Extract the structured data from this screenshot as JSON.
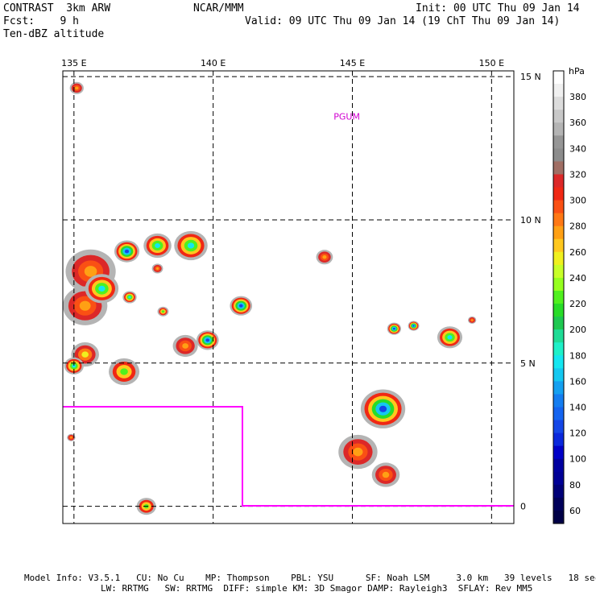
{
  "header": {
    "model": "CONTRAST  3km ARW",
    "org": "NCAR/MMM",
    "init": "Init: 00 UTC Thu 09 Jan 14",
    "fcst": "Fcst:    9 h",
    "valid": "Valid: 09 UTC Thu 09 Jan 14 (19 ChT Thu 09 Jan 14)",
    "field": "Ten-dBZ altitude"
  },
  "axes": {
    "lon_labels": [
      "135 E",
      "140 E",
      "145 E",
      "150 E"
    ],
    "lat_labels": [
      "15 N",
      "10 N",
      "5 N",
      "0"
    ],
    "lon_values": [
      135,
      140,
      145,
      150
    ],
    "lat_values": [
      15,
      10,
      5,
      0
    ],
    "lon_range": [
      134.6,
      150.8
    ],
    "lat_range": [
      -0.6,
      15.2
    ]
  },
  "station": {
    "label": "PGUM",
    "lon": 144.8,
    "lat": 13.5
  },
  "colorbar": {
    "unit": "hPa",
    "levels": [
      {
        "label": "",
        "color": "#ffffff"
      },
      {
        "label": "380",
        "color": "#f0f0f0"
      },
      {
        "label": "",
        "color": "#dcdcdc"
      },
      {
        "label": "360",
        "color": "#c8c8c8"
      },
      {
        "label": "",
        "color": "#b4b4b4"
      },
      {
        "label": "340",
        "color": "#969696"
      },
      {
        "label": "",
        "color": "#8c8c8c"
      },
      {
        "label": "320",
        "color": "#a06e64"
      },
      {
        "label": "",
        "color": "#dc2828"
      },
      {
        "label": "300",
        "color": "#f02814"
      },
      {
        "label": "",
        "color": "#fa5014"
      },
      {
        "label": "280",
        "color": "#ff7814"
      },
      {
        "label": "",
        "color": "#ffa014"
      },
      {
        "label": "260",
        "color": "#ffc81e"
      },
      {
        "label": "",
        "color": "#f0f01e"
      },
      {
        "label": "240",
        "color": "#c8ff28"
      },
      {
        "label": "",
        "color": "#96ff1e"
      },
      {
        "label": "220",
        "color": "#50f01e"
      },
      {
        "label": "",
        "color": "#28dc28"
      },
      {
        "label": "200",
        "color": "#1ec850"
      },
      {
        "label": "",
        "color": "#1edc96"
      },
      {
        "label": "180",
        "color": "#1ef0c8"
      },
      {
        "label": "",
        "color": "#14e6f0"
      },
      {
        "label": "160",
        "color": "#14c8f0"
      },
      {
        "label": "",
        "color": "#14a0f0"
      },
      {
        "label": "140",
        "color": "#147df0"
      },
      {
        "label": "",
        "color": "#1464f0"
      },
      {
        "label": "120",
        "color": "#1446e6"
      },
      {
        "label": "",
        "color": "#0a28dc"
      },
      {
        "label": "100",
        "color": "#0000c8"
      },
      {
        "label": "",
        "color": "#0000a0"
      },
      {
        "label": "80",
        "color": "#000096"
      },
      {
        "label": "",
        "color": "#000078"
      },
      {
        "label": "60",
        "color": "#00005a"
      },
      {
        "label": "",
        "color": "#000046"
      }
    ]
  },
  "domain_box_color": "#ff00ff",
  "footer": {
    "line1": "Model Info: V3.5.1   CU: No Cu    MP: Thompson    PBL: YSU      SF: Noah LSM     3.0 km   39 levels   18 sec",
    "line2": "LW: RRTMG   SW: RRTMG  DIFF: simple KM: 3D Smagor DAMP: Rayleigh3  SFLAY: Rev MM5"
  },
  "cells": [
    {
      "lon": 135.1,
      "lat": 14.6,
      "r": 0.25,
      "peak": "orange"
    },
    {
      "lon": 135.6,
      "lat": 8.2,
      "r": 0.9,
      "peak": "orange"
    },
    {
      "lon": 135.4,
      "lat": 7.0,
      "r": 0.8,
      "peak": "orange"
    },
    {
      "lon": 136.0,
      "lat": 7.6,
      "r": 0.6,
      "peak": "cyan"
    },
    {
      "lon": 135.4,
      "lat": 5.3,
      "r": 0.5,
      "peak": "yellow"
    },
    {
      "lon": 135.0,
      "lat": 4.9,
      "r": 0.35,
      "peak": "cyan"
    },
    {
      "lon": 136.8,
      "lat": 4.7,
      "r": 0.55,
      "peak": "green"
    },
    {
      "lon": 136.9,
      "lat": 8.9,
      "r": 0.45,
      "peak": "blue"
    },
    {
      "lon": 138.0,
      "lat": 9.1,
      "r": 0.5,
      "peak": "cyan"
    },
    {
      "lon": 139.2,
      "lat": 9.1,
      "r": 0.6,
      "peak": "cyan"
    },
    {
      "lon": 137.0,
      "lat": 7.3,
      "r": 0.25,
      "peak": "cyan"
    },
    {
      "lon": 138.2,
      "lat": 6.8,
      "r": 0.2,
      "peak": "green"
    },
    {
      "lon": 139.0,
      "lat": 5.6,
      "r": 0.45,
      "peak": "orange"
    },
    {
      "lon": 139.8,
      "lat": 5.8,
      "r": 0.4,
      "peak": "blue"
    },
    {
      "lon": 141.0,
      "lat": 7.0,
      "r": 0.4,
      "peak": "blue"
    },
    {
      "lon": 138.0,
      "lat": 8.3,
      "r": 0.2,
      "peak": "orange"
    },
    {
      "lon": 137.6,
      "lat": 0.0,
      "r": 0.35,
      "peak": "green"
    },
    {
      "lon": 144.0,
      "lat": 8.7,
      "r": 0.3,
      "peak": "orange"
    },
    {
      "lon": 145.2,
      "lat": 1.9,
      "r": 0.7,
      "peak": "orange"
    },
    {
      "lon": 146.2,
      "lat": 1.1,
      "r": 0.5,
      "peak": "orange"
    },
    {
      "lon": 146.1,
      "lat": 3.4,
      "r": 0.8,
      "peak": "blue"
    },
    {
      "lon": 146.5,
      "lat": 6.2,
      "r": 0.25,
      "peak": "blue"
    },
    {
      "lon": 147.2,
      "lat": 6.3,
      "r": 0.2,
      "peak": "blue"
    },
    {
      "lon": 148.5,
      "lat": 5.9,
      "r": 0.45,
      "peak": "cyan"
    },
    {
      "lon": 149.3,
      "lat": 6.5,
      "r": 0.15,
      "peak": "orange"
    },
    {
      "lon": 134.9,
      "lat": 2.4,
      "r": 0.15,
      "peak": "orange"
    }
  ]
}
